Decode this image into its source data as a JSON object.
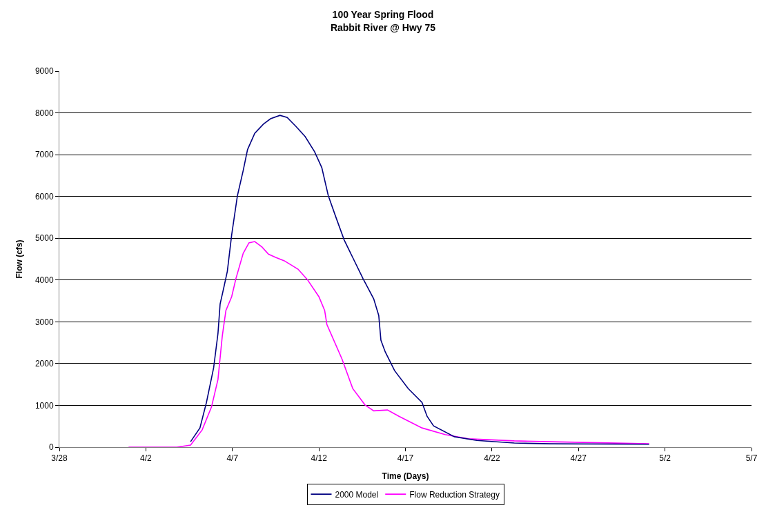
{
  "chart_data": {
    "type": "line",
    "title": "100 Year Spring Flood\nRabbit River @ Hwy 75",
    "xlabel": "Time (Days)",
    "ylabel": "Flow (cfs)",
    "xlim": [
      "--03-28",
      "--05-07"
    ],
    "xticks": [
      {
        "value": "--03-28",
        "label": "3/28"
      },
      {
        "value": "--04-02",
        "label": "4/2"
      },
      {
        "value": "--04-07",
        "label": "4/7"
      },
      {
        "value": "--04-12",
        "label": "4/12"
      },
      {
        "value": "--04-17",
        "label": "4/17"
      },
      {
        "value": "--04-22",
        "label": "4/22"
      },
      {
        "value": "--04-27",
        "label": "4/27"
      },
      {
        "value": "--05-02",
        "label": "5/2"
      },
      {
        "value": "--05-07",
        "label": "5/7"
      }
    ],
    "ylim": [
      0,
      9000
    ],
    "yticks": [
      0,
      1000,
      2000,
      3000,
      4000,
      5000,
      6000,
      7000,
      8000,
      9000
    ],
    "grid": "y",
    "legend": "bottom",
    "marker": "none",
    "line_style": "solid",
    "series": [
      {
        "name": "2000 Model",
        "color": "#000080",
        "x": [
          "--04-04T14:00",
          "--04-05T03:00",
          "--04-05T12:00",
          "--04-05T22:00",
          "--04-06T04:00",
          "--04-06T07:00",
          "--04-06T12:00",
          "--04-06T17:00",
          "--04-06T23:00",
          "--04-07T07:00",
          "--04-07T15:00",
          "--04-07T21:00",
          "--04-08T07:00",
          "--04-08T19:00",
          "--04-09T05:00",
          "--04-09T18:00",
          "--04-10T04:00",
          "--04-10T16:00",
          "--04-11T05:00",
          "--04-11T18:00",
          "--04-12T04:00",
          "--04-12T13:00",
          "--04-12T23:00",
          "--04-13T11:00",
          "--04-14T13:00",
          "--04-15T04:00",
          "--04-15T11:00",
          "--04-15T14:00",
          "--04-15T20:00",
          "--04-16T09:00",
          "--04-17T04:00",
          "--04-17T23:00",
          "--04-18T06:00",
          "--04-18T15:00",
          "--04-19T20:00",
          "--04-21T03:00",
          "--04-23T07:00",
          "--04-25T09:00",
          "--05-01T02:00"
        ],
        "values": [
          130,
          460,
          1070,
          1900,
          2720,
          3430,
          3810,
          4210,
          5080,
          6020,
          6620,
          7120,
          7510,
          7730,
          7860,
          7940,
          7890,
          7680,
          7430,
          7070,
          6690,
          6020,
          5530,
          4960,
          4040,
          3550,
          3150,
          2560,
          2280,
          1830,
          1400,
          1070,
          740,
          510,
          250,
          160,
          100,
          80,
          70
        ]
      },
      {
        "name": "Flow Reduction Strategy",
        "color": "#ff00ff",
        "x": [
          "--04-01T00:00",
          "--04-03T19:00",
          "--04-04T14:00",
          "--04-05T06:00",
          "--04-05T19:00",
          "--04-06T04:00",
          "--04-06T10:00",
          "--04-06T15:00",
          "--04-06T23:00",
          "--04-07T05:00",
          "--04-07T15:00",
          "--04-07T23:00",
          "--04-08T07:00",
          "--04-08T17:00",
          "--04-09T02:00",
          "--04-09T12:00",
          "--04-10T00:00",
          "--04-10T19:00",
          "--04-11T08:00",
          "--04-12T00:00",
          "--04-12T08:00",
          "--04-12T11:00",
          "--04-13T08:00",
          "--04-13T23:00",
          "--04-14T16:00",
          "--04-15T04:00",
          "--04-15T23:00",
          "--04-16T15:00",
          "--04-17T23:00",
          "--04-19T07:00",
          "--04-20T15:00",
          "--04-23T07:00",
          "--04-25T09:00",
          "--05-01T02:00"
        ],
        "values": [
          0,
          0,
          50,
          410,
          960,
          1620,
          2660,
          3270,
          3600,
          4040,
          4640,
          4890,
          4920,
          4790,
          4620,
          4540,
          4460,
          4260,
          4010,
          3600,
          3270,
          2940,
          2110,
          1400,
          1010,
          870,
          890,
          740,
          460,
          300,
          200,
          150,
          130,
          80
        ]
      }
    ]
  }
}
